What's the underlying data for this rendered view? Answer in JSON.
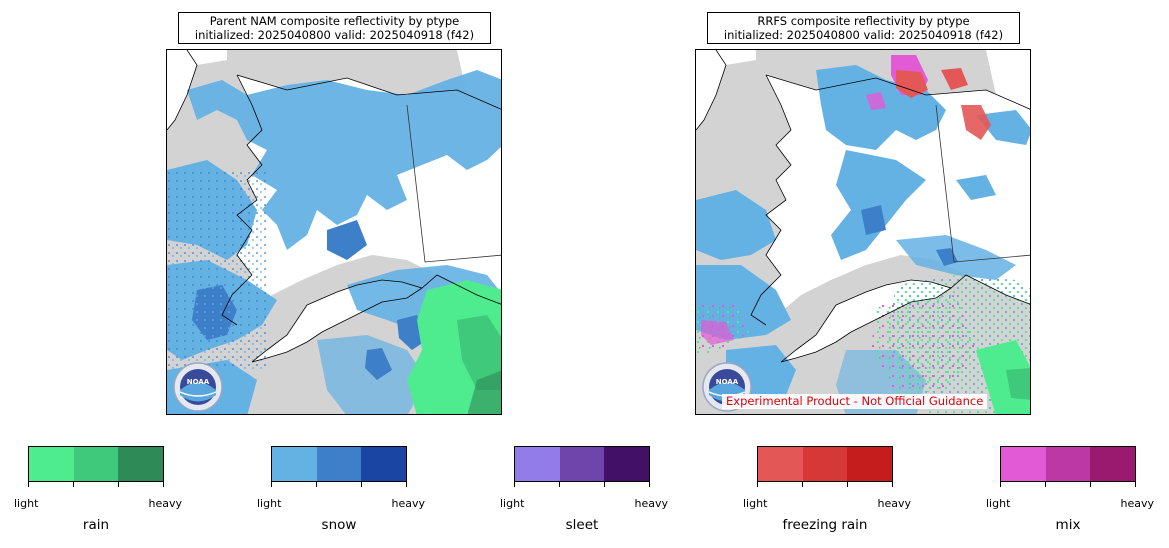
{
  "panels": [
    {
      "title_line1": "Parent NAM composite reflectivity by ptype",
      "title_line2": "initialized: 2025040800 valid: 2025040918 (f42)",
      "logo_text": "NOAA"
    },
    {
      "title_line1": "RRFS composite reflectivity by ptype",
      "title_line2": "initialized: 2025040800 valid: 2025040918 (f42)",
      "logo_text": "NOAA",
      "disclaimer": "Experimental Product - Not Official Guidance"
    }
  ],
  "legends": [
    {
      "name": "rain",
      "low": "light",
      "high": "heavy",
      "colors": [
        "#4fec8f",
        "#3fc97a",
        "#2e8a56"
      ]
    },
    {
      "name": "snow",
      "low": "light",
      "high": "heavy",
      "colors": [
        "#64b1e4",
        "#3e7fc9",
        "#1b45a3"
      ]
    },
    {
      "name": "sleet",
      "low": "light",
      "high": "heavy",
      "colors": [
        "#927ce9",
        "#6f45ab",
        "#431068"
      ]
    },
    {
      "name": "freezing rain",
      "low": "light",
      "high": "heavy",
      "colors": [
        "#e35757",
        "#d63838",
        "#c51d1d"
      ]
    },
    {
      "name": "mix",
      "low": "light",
      "high": "heavy",
      "colors": [
        "#e35ad6",
        "#bb38a5",
        "#9a1a70"
      ]
    }
  ],
  "colors": {
    "background_ocean": "#d3d3d3",
    "land_no_precip": "#ffffff",
    "coastline": "#000000"
  }
}
